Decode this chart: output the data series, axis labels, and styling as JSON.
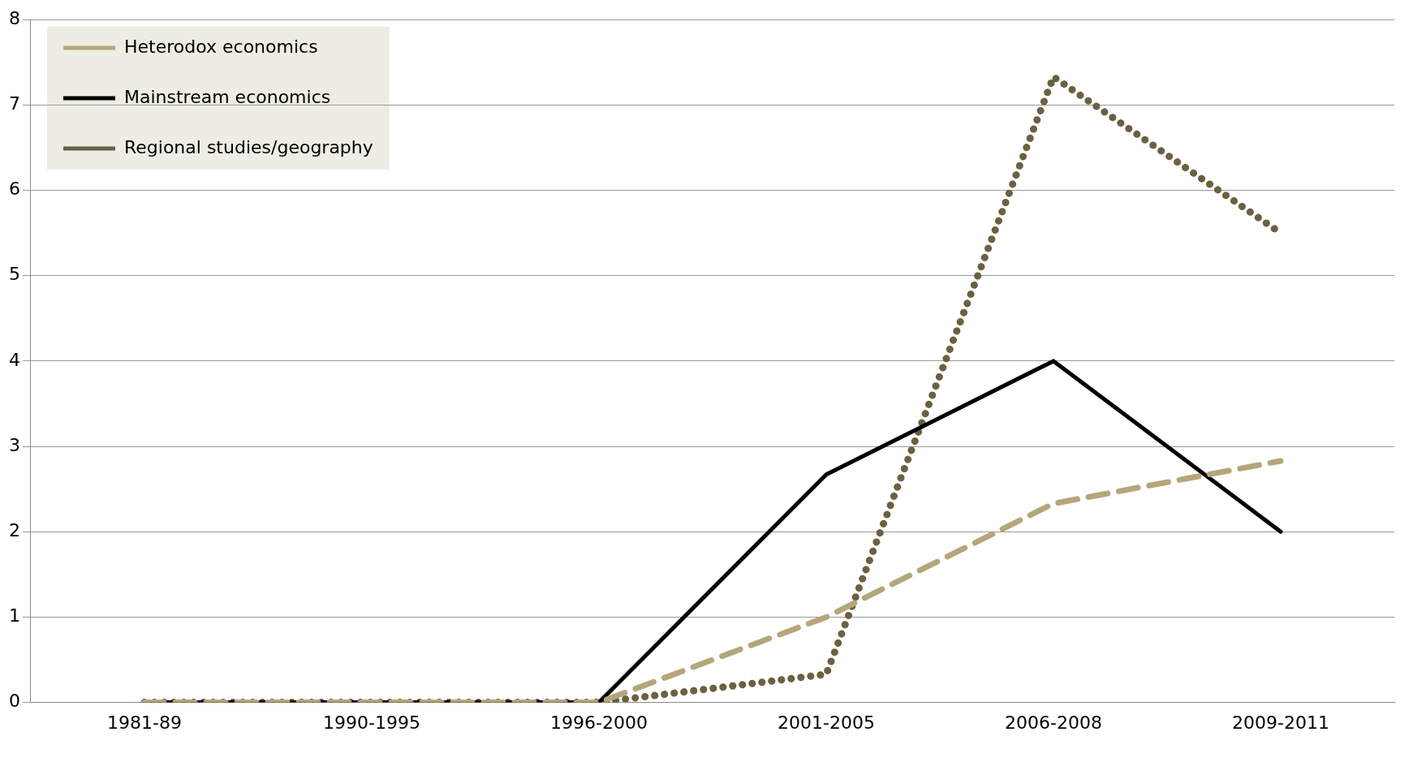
{
  "chart_data": {
    "type": "line",
    "categories": [
      "1981-89",
      "1990-1995",
      "1996-2000",
      "2001-2005",
      "2006-2008",
      "2009-2011"
    ],
    "series": [
      {
        "name": "Heterodox economics",
        "color": "#b5a67a",
        "line_style": "dashed",
        "values": [
          0,
          0,
          0,
          1,
          2.33,
          2.83
        ]
      },
      {
        "name": "Mainstream economics",
        "color": "#000000",
        "line_style": "solid",
        "values": [
          0,
          0,
          0,
          2.67,
          4,
          2
        ]
      },
      {
        "name": "Regional studies/geography",
        "color": "#6b6040",
        "line_style": "dotted",
        "values": [
          0,
          0,
          0,
          0.33,
          7.33,
          5.5
        ]
      }
    ],
    "ylim": [
      0,
      8
    ],
    "yticks": [
      0,
      1,
      2,
      3,
      4,
      5,
      6,
      7,
      8
    ],
    "grid": "y",
    "legend": "top left",
    "marker": "none"
  }
}
